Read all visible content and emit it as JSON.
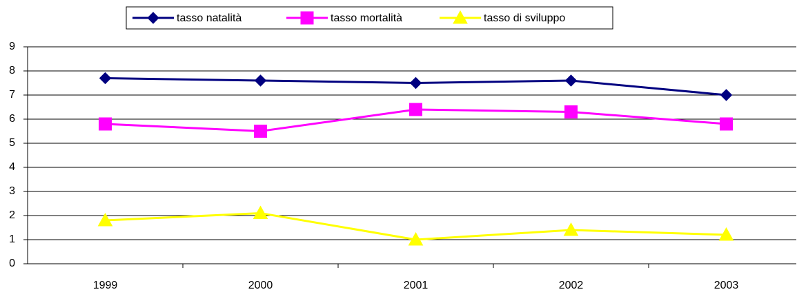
{
  "chart_data": {
    "type": "line",
    "categories": [
      "1999",
      "2000",
      "2001",
      "2002",
      "2003"
    ],
    "series": [
      {
        "name": "tasso natalità",
        "color": "#000080",
        "marker": "diamond",
        "values": [
          7.7,
          7.6,
          7.5,
          7.6,
          7.0
        ]
      },
      {
        "name": "tasso mortalità",
        "color": "#ff00ff",
        "marker": "square",
        "values": [
          5.8,
          5.5,
          6.4,
          6.3,
          5.8
        ]
      },
      {
        "name": "tasso di sviluppo",
        "color": "#ffff00",
        "marker": "triangle",
        "values": [
          1.8,
          2.1,
          1.0,
          1.4,
          1.2
        ]
      }
    ],
    "ylim": [
      0,
      9
    ],
    "yticks": [
      0,
      1,
      2,
      3,
      4,
      5,
      6,
      7,
      8,
      9
    ],
    "grid": true,
    "legend": "top"
  }
}
